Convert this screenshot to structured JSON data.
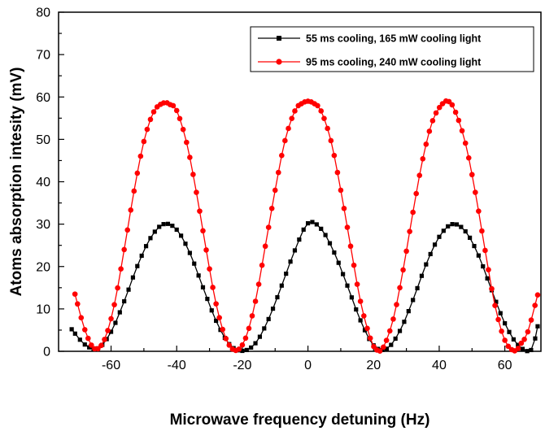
{
  "chart_data": {
    "type": "line",
    "title": "",
    "xlabel": "Microwave frequency detuning (Hz)",
    "ylabel": "Atoms absorption intesity (mV)",
    "xlim": [
      -76,
      71
    ],
    "ylim": [
      0,
      80
    ],
    "xticks": [
      -60,
      -40,
      -20,
      0,
      20,
      40,
      60
    ],
    "yticks": [
      0,
      10,
      20,
      30,
      40,
      50,
      60,
      70,
      80
    ],
    "grid": false,
    "legend_position": "top-right",
    "series": [
      {
        "name": "55 ms cooling, 165 mW cooling light",
        "color": "#000000",
        "marker": "square",
        "x": [
          -72,
          -68,
          -64,
          -60,
          -56,
          -52,
          -48,
          -44,
          -40,
          -36,
          -32,
          -28,
          -24,
          -20,
          -16,
          -12,
          -8,
          -4,
          0,
          4,
          8,
          12,
          16,
          20,
          24,
          28,
          32,
          36,
          40,
          44,
          48,
          52,
          56,
          60,
          64,
          68,
          70
        ],
        "y": [
          5.2,
          1.6,
          0.7,
          4.6,
          11.8,
          20.1,
          26.7,
          30.0,
          28.7,
          23.2,
          15.1,
          7.2,
          1.7,
          0.1,
          1.9,
          7.6,
          15.5,
          23.8,
          30.2,
          28.9,
          23.3,
          15.5,
          7.3,
          1.4,
          0.6,
          4.8,
          12.1,
          20.5,
          27.0,
          30.0,
          28.3,
          22.6,
          14.4,
          6.6,
          1.5,
          0.3,
          5.9
        ]
      },
      {
        "name": "95 ms cooling, 240 mW cooling light",
        "color": "#ff0000",
        "marker": "circle",
        "x": [
          -71,
          -68,
          -65,
          -62,
          -59,
          -56,
          -53,
          -50,
          -47,
          -44,
          -42,
          -40,
          -37,
          -34,
          -31,
          -28,
          -25,
          -22,
          -19,
          -16,
          -13,
          -10,
          -7,
          -4,
          -2,
          0,
          2,
          4,
          7,
          10,
          13,
          16,
          19,
          21,
          23,
          26,
          29,
          32,
          35,
          38,
          41,
          43,
          45,
          48,
          51,
          54,
          57,
          60,
          63,
          65,
          67,
          70
        ],
        "y": [
          13.5,
          5.1,
          0.6,
          2.8,
          11.0,
          24.0,
          37.8,
          49.5,
          56.5,
          58.6,
          58.2,
          56.8,
          49.3,
          37.5,
          23.9,
          11.2,
          3.0,
          0.2,
          3.1,
          11.8,
          24.8,
          38.0,
          49.7,
          56.7,
          58.4,
          59.0,
          58.4,
          56.7,
          49.7,
          38.0,
          24.8,
          11.8,
          3.1,
          0.3,
          1.0,
          7.6,
          19.2,
          32.8,
          45.4,
          54.4,
          58.4,
          58.9,
          56.4,
          49.1,
          37.5,
          23.8,
          10.8,
          2.6,
          0.1,
          1.9,
          4.6,
          13.3
        ]
      }
    ]
  }
}
